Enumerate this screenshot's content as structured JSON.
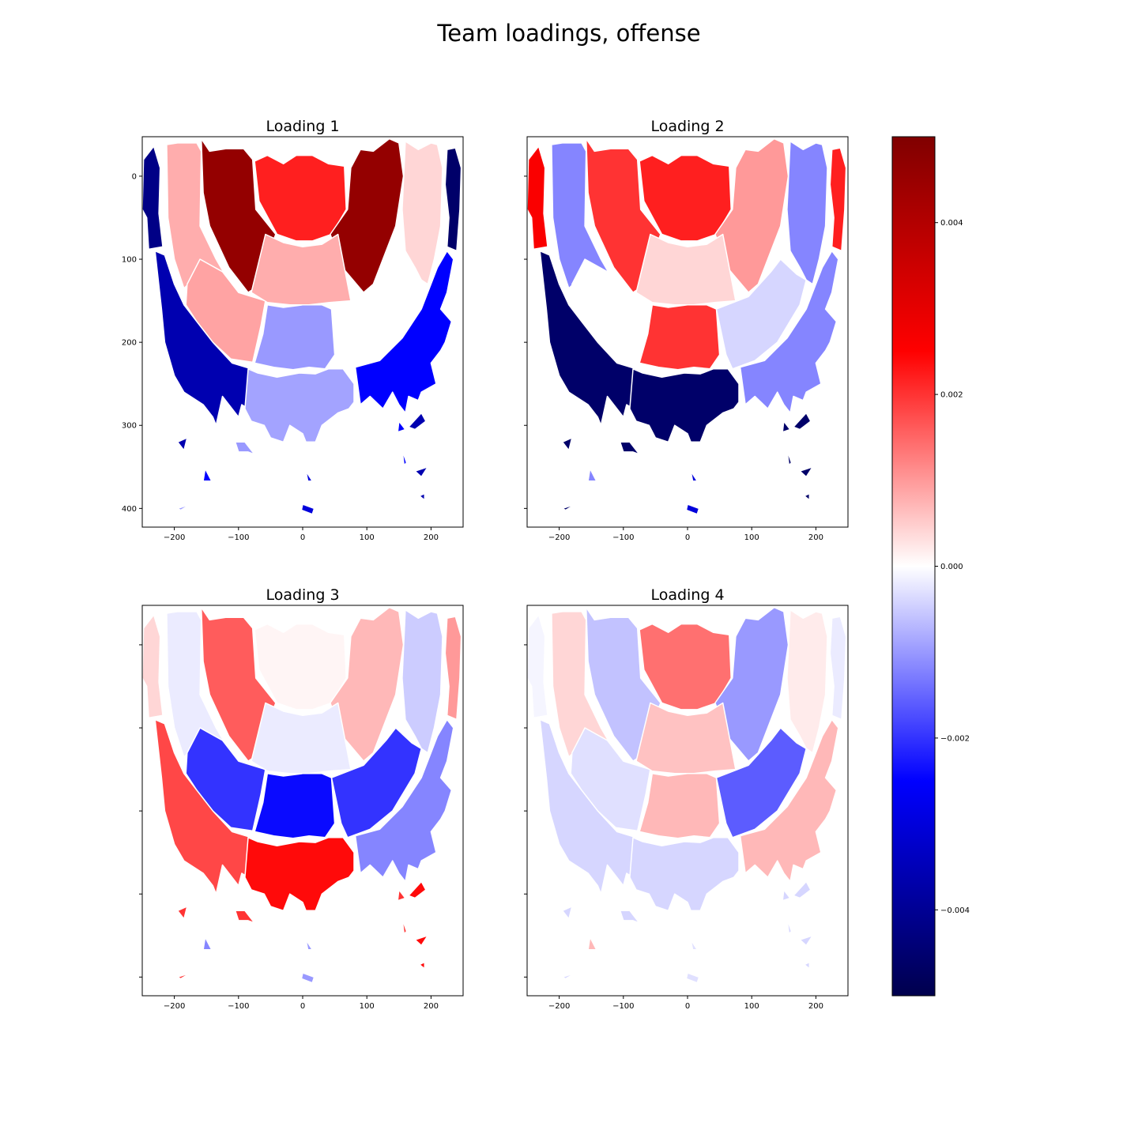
{
  "figure": {
    "title": "Team loadings, offense"
  },
  "chart_data": {
    "type": "heatmap",
    "description_units": "court x (ft*10) vs y (ft*10); loading value mapped to seismic colormap",
    "colorbar": {
      "cmap": "seismic",
      "vmin": -0.005,
      "vmax": 0.005,
      "ticks": [
        -0.004,
        -0.002,
        0.0,
        0.002,
        0.004
      ],
      "tick_labels": [
        "−0.004",
        "−0.002",
        "0.000",
        "0.002",
        "0.004"
      ]
    },
    "axes": {
      "xlim": [
        -250,
        250
      ],
      "ylim": [
        422.5,
        -47.5
      ],
      "xticks": [
        -200,
        -100,
        0,
        100,
        200
      ],
      "xtick_labels": [
        "−200",
        "−100",
        "0",
        "100",
        "200"
      ],
      "yticks": [
        0,
        100,
        200,
        300,
        400
      ],
      "ytick_labels": [
        "0",
        "100",
        "200",
        "300",
        "400"
      ]
    },
    "zones": [
      "left-corner",
      "left-wing-mid",
      "left-elbow",
      "paint",
      "right-elbow",
      "right-wing-mid",
      "right-corner",
      "left-base-mid",
      "left-mid",
      "center-mid",
      "right-mid",
      "right-base-mid",
      "left-wing-three",
      "top-three",
      "right-wing-three",
      "far-left",
      "far-left-center",
      "far-center",
      "far-right",
      "far-right-2"
    ],
    "panels": [
      {
        "title": "Loading 1",
        "show_ytick_labels": true,
        "values": [
          -0.0042,
          0.0008,
          0.0046,
          0.0022,
          0.0046,
          0.0004,
          -0.0046,
          0.0009,
          0.0008,
          -0.001,
          0.0,
          -0.0036,
          -0.0009,
          -0.0025,
          -0.0036,
          -0.001,
          -0.0025,
          -0.003,
          -0.0025,
          -0.0036
        ]
      },
      {
        "title": "Loading 2",
        "show_ytick_labels": false,
        "values": [
          0.0026,
          -0.0012,
          0.002,
          0.0022,
          0.001,
          -0.0012,
          0.0022,
          0.0,
          0.0004,
          0.002,
          -0.0004,
          -0.0046,
          -0.0046,
          -0.0012,
          -0.0046,
          -0.0046,
          -0.0012,
          -0.003,
          -0.0046,
          -0.0046
        ]
      },
      {
        "title": "Loading 3",
        "show_ytick_labels": false,
        "values": [
          0.0004,
          -0.0002,
          0.0016,
          0.0001,
          0.0007,
          -0.0005,
          0.001,
          -0.002,
          -0.0002,
          -0.0024,
          -0.002,
          0.0018,
          0.0024,
          -0.0012,
          0.002,
          0.002,
          -0.0012,
          -0.001,
          0.002,
          0.0024
        ]
      },
      {
        "title": "Loading 4",
        "show_ytick_labels": false,
        "values": [
          -0.0001,
          0.0004,
          -0.0006,
          0.0014,
          -0.001,
          0.0002,
          -0.0002,
          -0.0003,
          0.0006,
          0.0007,
          -0.0016,
          -0.0004,
          -0.0004,
          0.0007,
          -0.0004,
          -0.0004,
          0.0007,
          -0.0003,
          -0.0004,
          -0.0004
        ]
      }
    ]
  }
}
